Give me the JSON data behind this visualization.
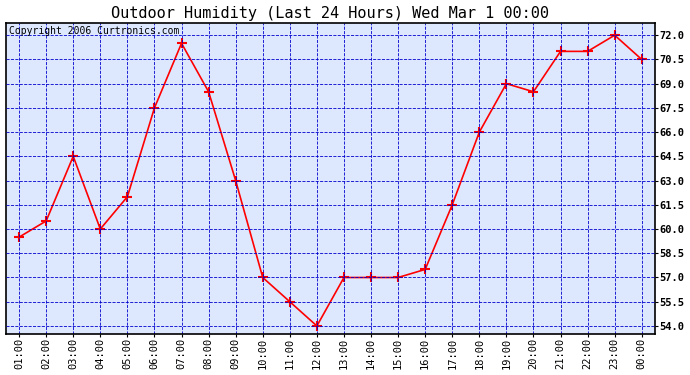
{
  "title": "Outdoor Humidity (Last 24 Hours) Wed Mar 1 00:00",
  "copyright": "Copyright 2006 Curtronics.com",
  "x_labels": [
    "01:00",
    "02:00",
    "03:00",
    "04:00",
    "05:00",
    "06:00",
    "07:00",
    "08:00",
    "09:00",
    "10:00",
    "11:00",
    "12:00",
    "13:00",
    "14:00",
    "15:00",
    "16:00",
    "17:00",
    "18:00",
    "19:00",
    "20:00",
    "21:00",
    "22:00",
    "23:00",
    "00:00"
  ],
  "y_values": [
    59.5,
    60.5,
    64.5,
    60.0,
    62.0,
    67.5,
    71.5,
    68.5,
    63.0,
    57.0,
    55.5,
    54.0,
    57.0,
    57.0,
    57.0,
    57.5,
    61.5,
    66.0,
    69.0,
    68.5,
    71.0,
    71.0,
    72.0,
    70.5
  ],
  "ylim": [
    53.5,
    72.75
  ],
  "yticks": [
    54.0,
    55.5,
    57.0,
    58.5,
    60.0,
    61.5,
    63.0,
    64.5,
    66.0,
    67.5,
    69.0,
    70.5,
    72.0
  ],
  "line_color": "red",
  "marker": "+",
  "marker_color": "red",
  "marker_size": 7,
  "marker_linewidth": 1.5,
  "line_width": 1.2,
  "fig_bg_color": "#ffffff",
  "plot_bg_color": "#dde8ff",
  "grid_color": "#0000cc",
  "grid_style": "--",
  "grid_linewidth": 0.6,
  "title_fontsize": 11,
  "copyright_fontsize": 7,
  "tick_fontsize": 7.5,
  "border_color": "black"
}
